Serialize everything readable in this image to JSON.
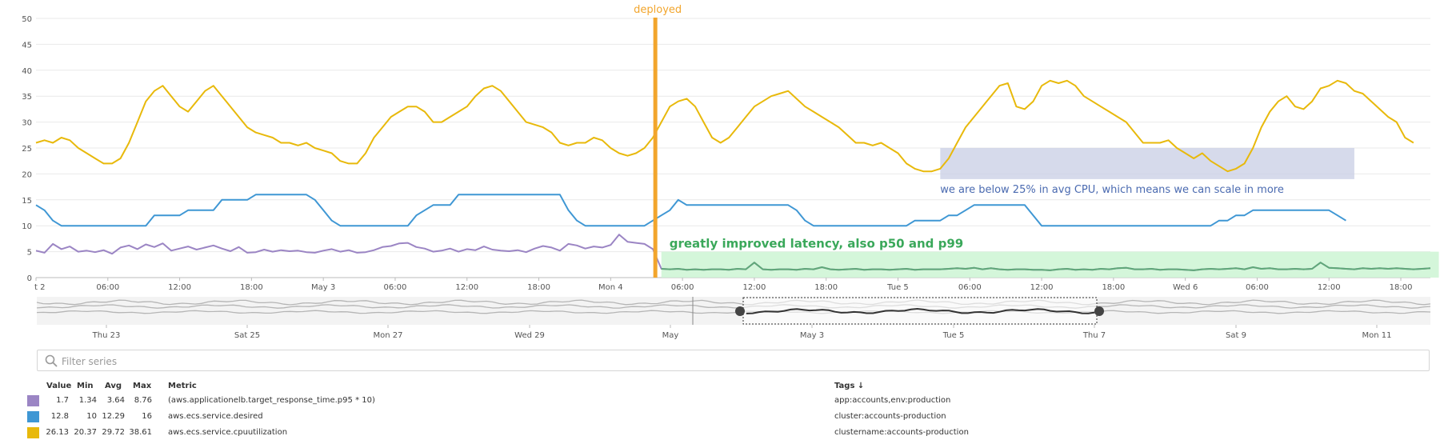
{
  "chart_data": [
    {
      "type": "line",
      "ylim": [
        0,
        50
      ],
      "y_ticks": [
        "0",
        "5",
        "10",
        "15",
        "20",
        "25",
        "30",
        "35",
        "40",
        "45",
        "50"
      ],
      "x_tick_labels": [
        "t 2",
        "06:00",
        "12:00",
        "18:00",
        "May 3",
        "06:00",
        "12:00",
        "18:00",
        "Mon 4",
        "06:00",
        "12:00",
        "18:00",
        "Tue 5",
        "06:00",
        "12:00",
        "18:00",
        "Wed 6",
        "06:00",
        "12:00",
        "18:00"
      ],
      "grid": true,
      "series": [
        {
          "name": "(aws.applicationelb.target_response_time.p95 * 10)",
          "color": "#9b85c4",
          "values": [
            5.2,
            4.8,
            6.5,
            5.5,
            6.0,
            5.0,
            5.2,
            4.9,
            5.3,
            4.6,
            5.8,
            6.2,
            5.5,
            6.4,
            5.9,
            6.6,
            5.2,
            5.6,
            6.0,
            5.4,
            5.8,
            6.2,
            5.6,
            5.1,
            5.9,
            4.8,
            4.9,
            5.4,
            5.0,
            5.3,
            5.1,
            5.2,
            4.9,
            4.8,
            5.2,
            5.5,
            5.0,
            5.3,
            4.8,
            4.9,
            5.3,
            5.9,
            6.1,
            6.6,
            6.7,
            5.9,
            5.6,
            5.0,
            5.2,
            5.6,
            5.0,
            5.5,
            5.3,
            6.0,
            5.4,
            5.2,
            5.1,
            5.3,
            4.9,
            5.6,
            6.1,
            5.8,
            5.2,
            6.5,
            6.2,
            5.6,
            6.0,
            5.8,
            6.3,
            8.3,
            6.9,
            6.7,
            6.5,
            5.5,
            1.7,
            1.6,
            1.7,
            1.5,
            1.6,
            1.5,
            1.6,
            1.6,
            1.5,
            1.7,
            1.6,
            2.9,
            1.6,
            1.5,
            1.6,
            1.6,
            1.5,
            1.7,
            1.6,
            2.0,
            1.6,
            1.5,
            1.6,
            1.7,
            1.5,
            1.6,
            1.6,
            1.5,
            1.6,
            1.7,
            1.5,
            1.6,
            1.6,
            1.6,
            1.7,
            1.8,
            1.7,
            1.9,
            1.6,
            1.8,
            1.6,
            1.5,
            1.6,
            1.6,
            1.5,
            1.5,
            1.4,
            1.6,
            1.7,
            1.5,
            1.6,
            1.5,
            1.7,
            1.6,
            1.8,
            1.9,
            1.6,
            1.6,
            1.7,
            1.5,
            1.6,
            1.6,
            1.5,
            1.4,
            1.6,
            1.7,
            1.6,
            1.7,
            1.8,
            1.6,
            2.0,
            1.7,
            1.8,
            1.6,
            1.6,
            1.7,
            1.6,
            1.7,
            2.9,
            1.9,
            1.8,
            1.7,
            1.6,
            1.8,
            1.7,
            1.8,
            1.7,
            1.8,
            1.7,
            1.6,
            1.7,
            1.8
          ]
        },
        {
          "name": "aws.ecs.service.desired",
          "color": "#3f97d4",
          "values": [
            14,
            13,
            11,
            10,
            10,
            10,
            10,
            10,
            10,
            10,
            10,
            10,
            10,
            10,
            12,
            12,
            12,
            12,
            13,
            13,
            13,
            13,
            15,
            15,
            15,
            15,
            16,
            16,
            16,
            16,
            16,
            16,
            16,
            15,
            13,
            11,
            10,
            10,
            10,
            10,
            10,
            10,
            10,
            10,
            10,
            12,
            13,
            14,
            14,
            14,
            16,
            16,
            16,
            16,
            16,
            16,
            16,
            16,
            16,
            16,
            16,
            16,
            16,
            13,
            11,
            10,
            10,
            10,
            10,
            10,
            10,
            10,
            10,
            11,
            12,
            13,
            15,
            14,
            14,
            14,
            14,
            14,
            14,
            14,
            14,
            14,
            14,
            14,
            14,
            14,
            13,
            11,
            10,
            10,
            10,
            10,
            10,
            10,
            10,
            10,
            10,
            10,
            10,
            10,
            11,
            11,
            11,
            11,
            12,
            12,
            13,
            14,
            14,
            14,
            14,
            14,
            14,
            14,
            12,
            10,
            10,
            10,
            10,
            10,
            10,
            10,
            10,
            10,
            10,
            10,
            10,
            10,
            10,
            10,
            10,
            10,
            10,
            10,
            10,
            10,
            11,
            11,
            12,
            12,
            13,
            13,
            13,
            13,
            13,
            13,
            13,
            13,
            13,
            13,
            12,
            11
          ]
        },
        {
          "name": "aws.ecs.service.cpuutilization",
          "color": "#e8b90b",
          "values": [
            26,
            26.5,
            26,
            27,
            26.5,
            25,
            24,
            23,
            22,
            22,
            23,
            26,
            30,
            34,
            36,
            37,
            35,
            33,
            32,
            34,
            36,
            37,
            35,
            33,
            31,
            29,
            28,
            27.5,
            27,
            26,
            26,
            25.5,
            26,
            25,
            24.5,
            24,
            22.5,
            22,
            22,
            24,
            27,
            29,
            31,
            32,
            33,
            33,
            32,
            30,
            30,
            31,
            32,
            33,
            35,
            36.5,
            37,
            36,
            34,
            32,
            30,
            29.5,
            29,
            28,
            26,
            25.5,
            26,
            26,
            27,
            26.5,
            25,
            24,
            23.5,
            24,
            25,
            27,
            30,
            33,
            34,
            34.5,
            33,
            30,
            27,
            26,
            27,
            29,
            31,
            33,
            34,
            35,
            35.5,
            36,
            34.5,
            33,
            32,
            31,
            30,
            29,
            27.5,
            26,
            26,
            25.5,
            26,
            25,
            24,
            22,
            21,
            20.5,
            20.5,
            21,
            23,
            26,
            29,
            31,
            33,
            35,
            37,
            37.5,
            33,
            32.5,
            34,
            37,
            38,
            37.5,
            38,
            37,
            35,
            34,
            33,
            32,
            31,
            30,
            28,
            26,
            26,
            26,
            26.5,
            25,
            24,
            23,
            24,
            22.5,
            21.5,
            20.5,
            21,
            22,
            25,
            29,
            32,
            34,
            35,
            33,
            32.5,
            34,
            36.5,
            37,
            38,
            37.5,
            36,
            35.5,
            34,
            32.5,
            31,
            30,
            27,
            26
          ]
        }
      ],
      "annotations": [
        {
          "label": "deployed",
          "type": "vertical-marker",
          "x_index": 73,
          "color": "#f2a52c"
        },
        {
          "label": "we are below 25% in avg CPU, which means we can scale in more",
          "type": "region",
          "x_index_range": [
            107,
            156
          ],
          "y_range": [
            19,
            25
          ],
          "color": "#4a6ab0"
        },
        {
          "label": "greatly improved latency, also p50 and p99",
          "type": "region",
          "x_index_range": [
            74,
            166
          ],
          "y_range": [
            0,
            5
          ],
          "color": "#3aa85a"
        }
      ]
    },
    {
      "type": "line",
      "role": "overview-navigator",
      "x_tick_labels": [
        "Thu 23",
        "Sat 25",
        "Mon 27",
        "Wed 29",
        "May",
        "May 3",
        "Tue 5",
        "Thu 7",
        "Sat 9",
        "Mon 11"
      ],
      "selection_label_range": [
        "May 3",
        "Thu 7"
      ]
    }
  ],
  "filter": {
    "placeholder": "Filter series",
    "value": ""
  },
  "legend": {
    "headers": {
      "value": "Value",
      "min": "Min",
      "avg": "Avg",
      "max": "Max",
      "metric": "Metric",
      "tags": "Tags ↓"
    },
    "rows": [
      {
        "color": "#9b85c4",
        "value": "1.7",
        "min": "1.34",
        "avg": "3.64",
        "max": "8.76",
        "metric": "(aws.applicationelb.target_response_time.p95 * 10)",
        "tags": "app:accounts,env:production"
      },
      {
        "color": "#3f97d4",
        "value": "12.8",
        "min": "10",
        "avg": "12.29",
        "max": "16",
        "metric": "aws.ecs.service.desired",
        "tags": "cluster:accounts-production"
      },
      {
        "color": "#e8b90b",
        "value": "26.13",
        "min": "20.37",
        "avg": "29.72",
        "max": "38.61",
        "metric": "aws.ecs.service.cpuutilization",
        "tags": "clustername:accounts-production"
      }
    ]
  }
}
